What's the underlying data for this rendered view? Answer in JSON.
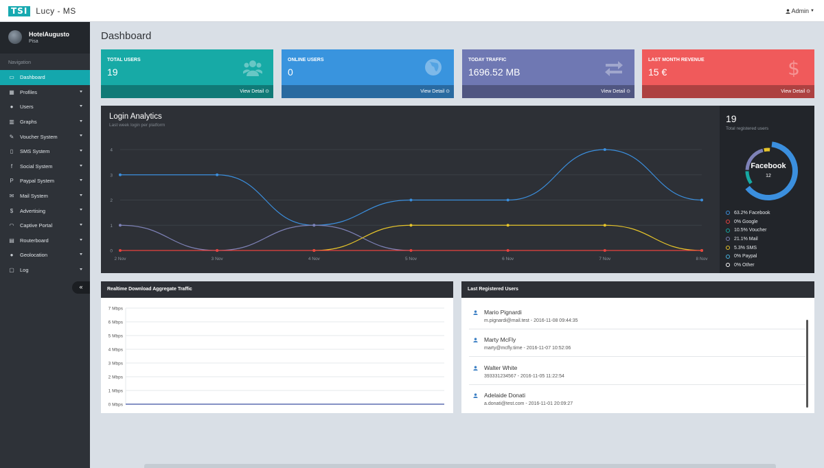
{
  "app": {
    "logo": "TSI",
    "name": "Lucy - MS",
    "user_menu": "Admin"
  },
  "profile": {
    "name": "HotelAugusto",
    "location": "Pisa"
  },
  "nav": {
    "title": "Navigation",
    "items": [
      {
        "label": "Dashboard",
        "icon": "laptop-icon",
        "glyph": "▭",
        "active": true,
        "submenu": false
      },
      {
        "label": "Profiles",
        "icon": "grid-icon",
        "glyph": "▦",
        "active": false,
        "submenu": true
      },
      {
        "label": "Users",
        "icon": "users-icon",
        "glyph": "●",
        "active": false,
        "submenu": true
      },
      {
        "label": "Graphs",
        "icon": "bar-chart-icon",
        "glyph": "▥",
        "active": false,
        "submenu": true
      },
      {
        "label": "Voucher System",
        "icon": "ticket-icon",
        "glyph": "✎",
        "active": false,
        "submenu": true
      },
      {
        "label": "SMS System",
        "icon": "mobile-icon",
        "glyph": "▯",
        "active": false,
        "submenu": true
      },
      {
        "label": "Social System",
        "icon": "facebook-icon",
        "glyph": "f",
        "active": false,
        "submenu": true
      },
      {
        "label": "Paypal System",
        "icon": "paypal-icon",
        "glyph": "P",
        "active": false,
        "submenu": true
      },
      {
        "label": "Mail System",
        "icon": "envelope-icon",
        "glyph": "✉",
        "active": false,
        "submenu": true
      },
      {
        "label": "Advertising",
        "icon": "dollar-icon",
        "glyph": "$",
        "active": false,
        "submenu": true
      },
      {
        "label": "Captive Portal",
        "icon": "wifi-icon",
        "glyph": "◠",
        "active": false,
        "submenu": true
      },
      {
        "label": "Routerboard",
        "icon": "server-icon",
        "glyph": "▤",
        "active": false,
        "submenu": true
      },
      {
        "label": "Geolocation",
        "icon": "map-marker-icon",
        "glyph": "●",
        "active": false,
        "submenu": true
      },
      {
        "label": "Log",
        "icon": "file-icon",
        "glyph": "▢",
        "active": false,
        "submenu": true
      }
    ],
    "collapse": "«"
  },
  "page": {
    "title": "Dashboard"
  },
  "stats": [
    {
      "label": "TOTAL USERS",
      "value": "19",
      "link": "View Detail ⊙",
      "color": "#17aaa6",
      "icon": "users-icon"
    },
    {
      "label": "ONLINE USERS",
      "value": "0",
      "link": "View Detail ⊙",
      "color": "#3994de",
      "icon": "globe-icon"
    },
    {
      "label": "TODAY TRAFFIC",
      "value": "1696.52 MB",
      "link": "View Detail ⊙",
      "color": "#6f78b3",
      "icon": "exchange-icon"
    },
    {
      "label": "LAST MONTH REVENUE",
      "value": "15 €",
      "link": "View Detail ⊙",
      "color": "#f05a5b",
      "icon": "dollar-icon"
    }
  ],
  "analytics": {
    "title": "Login Analytics",
    "subtitle": "Last week login per platform",
    "total": "19",
    "total_label": "Total registered users",
    "donut": {
      "label": "Facebook",
      "value": "12"
    },
    "legend": [
      {
        "text": "63.2% Facebook",
        "color": "#3b8fde",
        "value": 63.2
      },
      {
        "text": "0% Google",
        "color": "#e8423f",
        "value": 0
      },
      {
        "text": "10.5% Voucher",
        "color": "#16a9a3",
        "value": 10.5
      },
      {
        "text": "21.1% Mail",
        "color": "#7e82b7",
        "value": 21.1
      },
      {
        "text": "5.3% SMS",
        "color": "#e7c52a",
        "value": 5.3
      },
      {
        "text": "0% Paypal",
        "color": "#47b4e0",
        "value": 0
      },
      {
        "text": "0% Other",
        "color": "#ffffff",
        "value": 0
      }
    ]
  },
  "chart_data": [
    {
      "type": "line",
      "title": "Login Analytics",
      "subtitle": "Last week login per platform",
      "categories": [
        "2 Nov",
        "3 Nov",
        "4 Nov",
        "5 Nov",
        "6 Nov",
        "7 Nov",
        "8 Nov"
      ],
      "ylim": [
        0,
        4
      ],
      "yticks": [
        0,
        1,
        2,
        3,
        4
      ],
      "grid": true,
      "series": [
        {
          "color": "#3b8fde",
          "values": [
            3,
            3,
            1,
            2,
            2,
            4,
            2
          ]
        },
        {
          "color": "#7e82b7",
          "values": [
            1,
            0,
            1,
            0,
            0,
            0,
            0
          ]
        },
        {
          "color": "#e7c52a",
          "values": [
            0,
            0,
            0,
            1,
            1,
            1,
            0
          ]
        },
        {
          "color": "#e8423f",
          "values": [
            0,
            0,
            0,
            0,
            0,
            0,
            0
          ]
        }
      ]
    },
    {
      "type": "pie",
      "categories": [
        "Facebook",
        "Google",
        "Voucher",
        "Mail",
        "SMS",
        "Paypal",
        "Other"
      ],
      "values": [
        63.2,
        0,
        10.5,
        21.1,
        5.3,
        0,
        0
      ],
      "center_label": "Facebook",
      "center_value": "12"
    },
    {
      "type": "area",
      "title": "Realtime Download Aggregate Traffic",
      "yticks": [
        "0 Mbps",
        "1 Mbps",
        "2 Mbps",
        "3 Mbps",
        "4 Mbps",
        "5 Mbps",
        "6 Mbps",
        "7 Mbps"
      ],
      "ylim": [
        0,
        7
      ],
      "values": [
        0,
        0,
        0,
        0,
        0,
        0,
        0,
        0,
        0,
        0
      ],
      "grid": true
    }
  ],
  "traffic": {
    "title": "Realtime Download Aggregate Traffic"
  },
  "recent": {
    "title": "Last Registered Users",
    "users": [
      {
        "name": "Mario Pignardi",
        "meta": "m.pignardi@mail.test - 2016-11-08 09:44:35"
      },
      {
        "name": "Marty McFly",
        "meta": "marty@mcfly.time - 2016-11-07 10:52:06"
      },
      {
        "name": "Walter White",
        "meta": "393331234567 - 2016-11-05 11:22:54"
      },
      {
        "name": "Adelaide Donati",
        "meta": "a.donati@test.com - 2016-11-01 20:09:27"
      }
    ]
  }
}
